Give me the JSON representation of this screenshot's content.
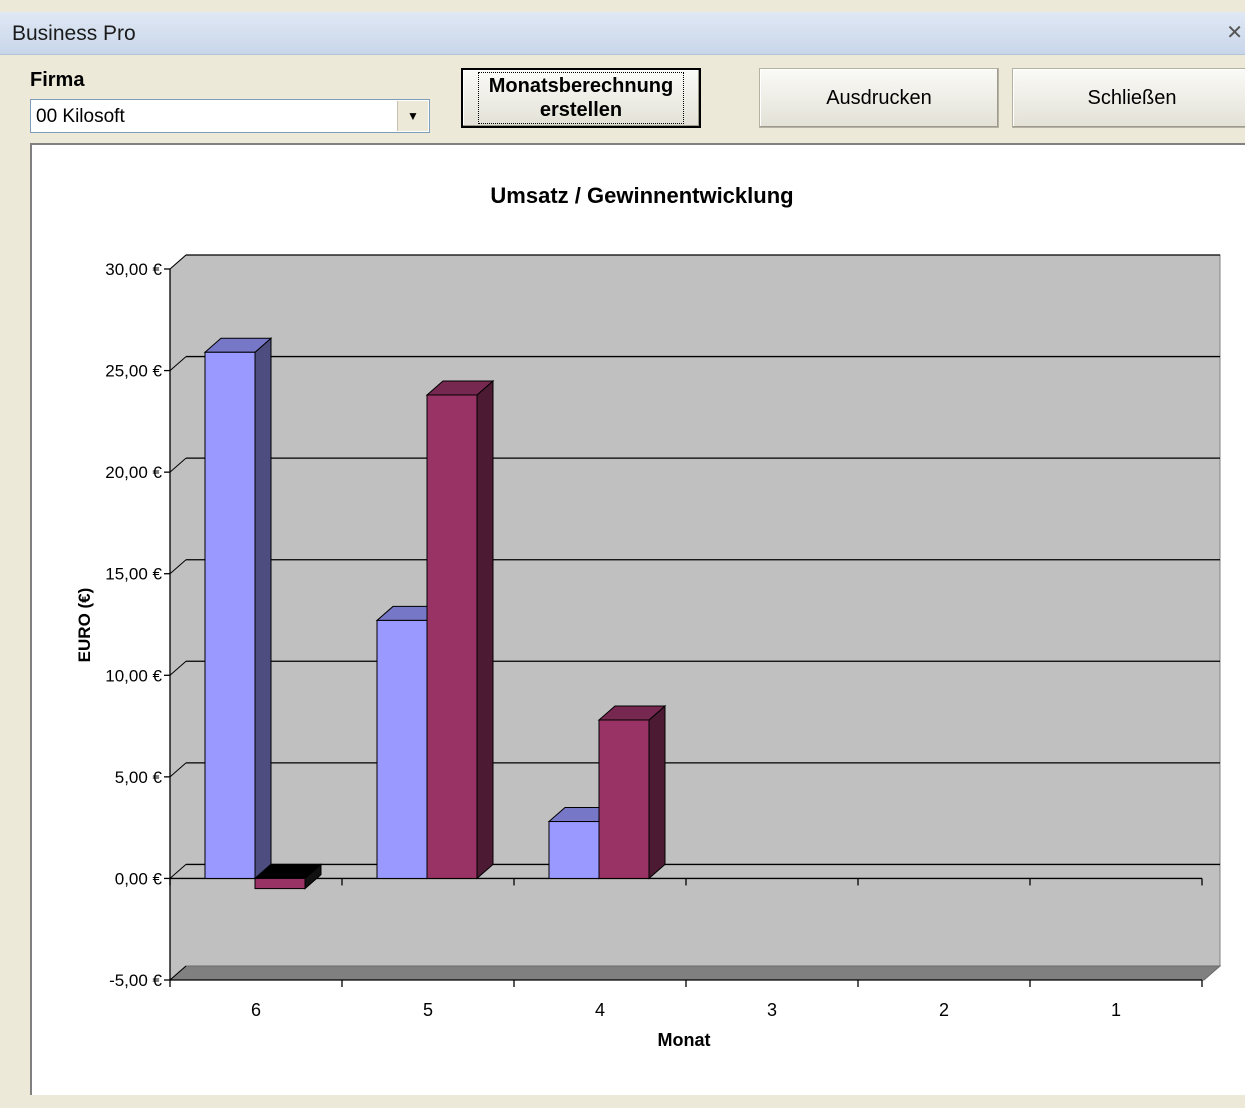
{
  "window": {
    "title": "Business Pro",
    "close_glyph": "✕"
  },
  "firma": {
    "label": "Firma",
    "selected": "00 Kilosoft"
  },
  "buttons": {
    "monthly_line1": "Monatsberechnung",
    "monthly_line2": "erstellen",
    "print": "Ausdrucken",
    "close": "Schließen"
  },
  "colors": {
    "series1": "#9999ff",
    "series2": "#993366",
    "plot_bg": "#c0c0c0"
  },
  "chart_data": {
    "type": "bar",
    "title": "Umsatz / Gewinnentwicklung",
    "xlabel": "Monat",
    "ylabel": "EURO (€)",
    "categories": [
      "6",
      "5",
      "4",
      "3",
      "2",
      "1"
    ],
    "series": [
      {
        "values": [
          25.9,
          12.7,
          2.8,
          0,
          0,
          0
        ]
      },
      {
        "values": [
          -0.5,
          23.8,
          7.8,
          0,
          0,
          0
        ]
      }
    ],
    "ylim": [
      -5,
      30
    ],
    "yticks": [
      "-5,00 €",
      "0,00 €",
      "5,00 €",
      "10,00 €",
      "15,00 €",
      "20,00 €",
      "25,00 €",
      "30,00 €"
    ],
    "ytick_values": [
      -5,
      0,
      5,
      10,
      15,
      20,
      25,
      30
    ],
    "grid": true,
    "legend": "none",
    "style": "3d"
  }
}
